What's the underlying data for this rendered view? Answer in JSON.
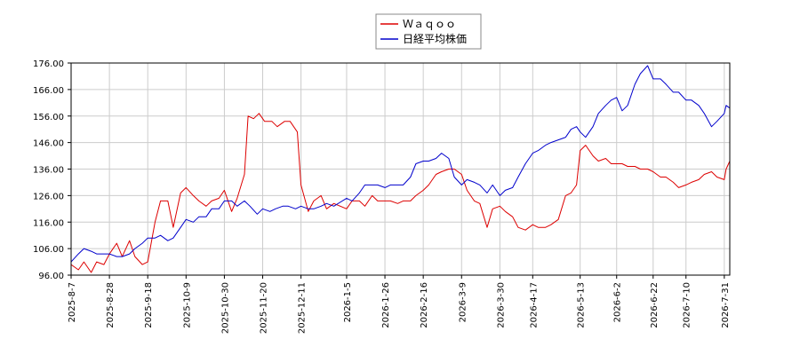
{
  "chart_data": {
    "type": "line",
    "legend_position": "top-center",
    "grid": true,
    "ylim": [
      96,
      176
    ],
    "yticks": [
      "96.00",
      "106.00",
      "116.00",
      "126.00",
      "136.00",
      "146.00",
      "156.00",
      "166.00",
      "176.00"
    ],
    "xticks": [
      "2025-8-7",
      "2025-8-28",
      "2025-9-18",
      "2025-10-9",
      "2025-10-30",
      "2025-11-20",
      "2025-12-11",
      "2026-1-5",
      "2026-1-26",
      "2026-2-16",
      "2026-3-9",
      "2026-3-30",
      "2026-4-17",
      "2026-5-13",
      "2026-6-2",
      "2026-6-22",
      "2026-7-10",
      "2026-7-31"
    ],
    "x_end": "2026-8-3",
    "series": [
      {
        "name": "Ｗａｑｏｏ",
        "color": "#dd0000",
        "points": [
          [
            "2025-8-7",
            100
          ],
          [
            "2025-8-11",
            98
          ],
          [
            "2025-8-14",
            101
          ],
          [
            "2025-8-18",
            97
          ],
          [
            "2025-8-21",
            101
          ],
          [
            "2025-8-25",
            100
          ],
          [
            "2025-8-28",
            104
          ],
          [
            "2025-9-1",
            108
          ],
          [
            "2025-9-4",
            103
          ],
          [
            "2025-9-8",
            109
          ],
          [
            "2025-9-11",
            103
          ],
          [
            "2025-9-15",
            100
          ],
          [
            "2025-9-18",
            101
          ],
          [
            "2025-9-22",
            116
          ],
          [
            "2025-9-25",
            124
          ],
          [
            "2025-9-29",
            124
          ],
          [
            "2025-10-2",
            114
          ],
          [
            "2025-10-6",
            127
          ],
          [
            "2025-10-9",
            129
          ],
          [
            "2025-10-13",
            126
          ],
          [
            "2025-10-16",
            124
          ],
          [
            "2025-10-20",
            122
          ],
          [
            "2025-10-23",
            124
          ],
          [
            "2025-10-27",
            125
          ],
          [
            "2025-10-30",
            128
          ],
          [
            "2025-11-3",
            120
          ],
          [
            "2025-11-6",
            125
          ],
          [
            "2025-11-10",
            134
          ],
          [
            "2025-11-12",
            156
          ],
          [
            "2025-11-15",
            155
          ],
          [
            "2025-11-18",
            157
          ],
          [
            "2025-11-21",
            154
          ],
          [
            "2025-11-25",
            154
          ],
          [
            "2025-11-28",
            152
          ],
          [
            "2025-12-2",
            154
          ],
          [
            "2025-12-5",
            154
          ],
          [
            "2025-12-9",
            150
          ],
          [
            "2025-12-11",
            130
          ],
          [
            "2025-12-15",
            120
          ],
          [
            "2025-12-18",
            124
          ],
          [
            "2025-12-22",
            126
          ],
          [
            "2025-12-25",
            121
          ],
          [
            "2025-12-29",
            123
          ],
          [
            "2026-1-5",
            121
          ],
          [
            "2026-1-8",
            124
          ],
          [
            "2026-1-12",
            124
          ],
          [
            "2026-1-15",
            122
          ],
          [
            "2026-1-19",
            126
          ],
          [
            "2026-1-22",
            124
          ],
          [
            "2026-1-26",
            124
          ],
          [
            "2026-1-29",
            124
          ],
          [
            "2026-2-2",
            123
          ],
          [
            "2026-2-5",
            124
          ],
          [
            "2026-2-9",
            124
          ],
          [
            "2026-2-12",
            126
          ],
          [
            "2026-2-16",
            128
          ],
          [
            "2026-2-19",
            130
          ],
          [
            "2026-2-23",
            134
          ],
          [
            "2026-2-26",
            135
          ],
          [
            "2026-3-2",
            136
          ],
          [
            "2026-3-5",
            136
          ],
          [
            "2026-3-9",
            134
          ],
          [
            "2026-3-12",
            128
          ],
          [
            "2026-3-16",
            124
          ],
          [
            "2026-3-19",
            123
          ],
          [
            "2026-3-23",
            114
          ],
          [
            "2026-3-26",
            121
          ],
          [
            "2026-3-30",
            122
          ],
          [
            "2026-4-2",
            120
          ],
          [
            "2026-4-6",
            118
          ],
          [
            "2026-4-9",
            114
          ],
          [
            "2026-4-13",
            113
          ],
          [
            "2026-4-17",
            115
          ],
          [
            "2026-4-20",
            114
          ],
          [
            "2026-4-24",
            114
          ],
          [
            "2026-4-27",
            115
          ],
          [
            "2026-5-1",
            117
          ],
          [
            "2026-5-5",
            126
          ],
          [
            "2026-5-8",
            127
          ],
          [
            "2026-5-11",
            130
          ],
          [
            "2026-5-13",
            143
          ],
          [
            "2026-5-16",
            145
          ],
          [
            "2026-5-20",
            141
          ],
          [
            "2026-5-23",
            139
          ],
          [
            "2026-5-27",
            140
          ],
          [
            "2026-5-30",
            138
          ],
          [
            "2026-6-2",
            138
          ],
          [
            "2026-6-5",
            138
          ],
          [
            "2026-6-8",
            137
          ],
          [
            "2026-6-12",
            137
          ],
          [
            "2026-6-15",
            136
          ],
          [
            "2026-6-19",
            136
          ],
          [
            "2026-6-22",
            135
          ],
          [
            "2026-6-26",
            133
          ],
          [
            "2026-6-29",
            133
          ],
          [
            "2026-7-3",
            131
          ],
          [
            "2026-7-6",
            129
          ],
          [
            "2026-7-10",
            130
          ],
          [
            "2026-7-13",
            131
          ],
          [
            "2026-7-17",
            132
          ],
          [
            "2026-7-20",
            134
          ],
          [
            "2026-7-24",
            135
          ],
          [
            "2026-7-27",
            133
          ],
          [
            "2026-7-31",
            132
          ],
          [
            "2026-8-1",
            136
          ],
          [
            "2026-8-3",
            139
          ]
        ]
      },
      {
        "name": "日経平均株価",
        "color": "#0000cc",
        "points": [
          [
            "2025-8-7",
            101
          ],
          [
            "2025-8-11",
            104
          ],
          [
            "2025-8-14",
            106
          ],
          [
            "2025-8-18",
            105
          ],
          [
            "2025-8-21",
            104
          ],
          [
            "2025-8-25",
            104
          ],
          [
            "2025-8-28",
            104
          ],
          [
            "2025-9-1",
            103
          ],
          [
            "2025-9-4",
            103
          ],
          [
            "2025-9-8",
            104
          ],
          [
            "2025-9-11",
            106
          ],
          [
            "2025-9-15",
            108
          ],
          [
            "2025-9-18",
            110
          ],
          [
            "2025-9-22",
            110
          ],
          [
            "2025-9-25",
            111
          ],
          [
            "2025-9-29",
            109
          ],
          [
            "2025-10-2",
            110
          ],
          [
            "2025-10-6",
            114
          ],
          [
            "2025-10-9",
            117
          ],
          [
            "2025-10-13",
            116
          ],
          [
            "2025-10-16",
            118
          ],
          [
            "2025-10-20",
            118
          ],
          [
            "2025-10-23",
            121
          ],
          [
            "2025-10-27",
            121
          ],
          [
            "2025-10-30",
            124
          ],
          [
            "2025-11-3",
            124
          ],
          [
            "2025-11-6",
            122
          ],
          [
            "2025-11-10",
            124
          ],
          [
            "2025-11-13",
            122
          ],
          [
            "2025-11-17",
            119
          ],
          [
            "2025-11-20",
            121
          ],
          [
            "2025-11-24",
            120
          ],
          [
            "2025-11-27",
            121
          ],
          [
            "2025-12-1",
            122
          ],
          [
            "2025-12-4",
            122
          ],
          [
            "2025-12-8",
            121
          ],
          [
            "2025-12-11",
            122
          ],
          [
            "2025-12-15",
            121
          ],
          [
            "2025-12-18",
            121
          ],
          [
            "2025-12-22",
            122
          ],
          [
            "2025-12-25",
            123
          ],
          [
            "2025-12-29",
            122
          ],
          [
            "2026-1-5",
            125
          ],
          [
            "2026-1-8",
            124
          ],
          [
            "2026-1-12",
            127
          ],
          [
            "2026-1-15",
            130
          ],
          [
            "2026-1-19",
            130
          ],
          [
            "2026-1-22",
            130
          ],
          [
            "2026-1-26",
            129
          ],
          [
            "2026-1-29",
            130
          ],
          [
            "2026-2-2",
            130
          ],
          [
            "2026-2-5",
            130
          ],
          [
            "2026-2-9",
            133
          ],
          [
            "2026-2-12",
            138
          ],
          [
            "2026-2-16",
            139
          ],
          [
            "2026-2-19",
            139
          ],
          [
            "2026-2-23",
            140
          ],
          [
            "2026-2-26",
            142
          ],
          [
            "2026-3-2",
            140
          ],
          [
            "2026-3-5",
            133
          ],
          [
            "2026-3-9",
            130
          ],
          [
            "2026-3-12",
            132
          ],
          [
            "2026-3-16",
            131
          ],
          [
            "2026-3-19",
            130
          ],
          [
            "2026-3-23",
            127
          ],
          [
            "2026-3-26",
            130
          ],
          [
            "2026-3-30",
            126
          ],
          [
            "2026-4-2",
            128
          ],
          [
            "2026-4-6",
            129
          ],
          [
            "2026-4-9",
            133
          ],
          [
            "2026-4-13",
            138
          ],
          [
            "2026-4-17",
            142
          ],
          [
            "2026-4-20",
            143
          ],
          [
            "2026-4-24",
            145
          ],
          [
            "2026-4-27",
            146
          ],
          [
            "2026-5-1",
            147
          ],
          [
            "2026-5-5",
            148
          ],
          [
            "2026-5-8",
            151
          ],
          [
            "2026-5-11",
            152
          ],
          [
            "2026-5-13",
            150
          ],
          [
            "2026-5-16",
            148
          ],
          [
            "2026-5-20",
            152
          ],
          [
            "2026-5-23",
            157
          ],
          [
            "2026-5-27",
            160
          ],
          [
            "2026-5-30",
            162
          ],
          [
            "2026-6-2",
            163
          ],
          [
            "2026-6-5",
            158
          ],
          [
            "2026-6-8",
            160
          ],
          [
            "2026-6-12",
            168
          ],
          [
            "2026-6-15",
            172
          ],
          [
            "2026-6-19",
            175
          ],
          [
            "2026-6-22",
            170
          ],
          [
            "2026-6-26",
            170
          ],
          [
            "2026-6-29",
            168
          ],
          [
            "2026-7-3",
            165
          ],
          [
            "2026-7-6",
            165
          ],
          [
            "2026-7-10",
            162
          ],
          [
            "2026-7-13",
            162
          ],
          [
            "2026-7-17",
            160
          ],
          [
            "2026-7-20",
            157
          ],
          [
            "2026-7-24",
            152
          ],
          [
            "2026-7-27",
            154
          ],
          [
            "2026-7-31",
            157
          ],
          [
            "2026-8-1",
            160
          ],
          [
            "2026-8-3",
            159
          ]
        ]
      }
    ]
  }
}
